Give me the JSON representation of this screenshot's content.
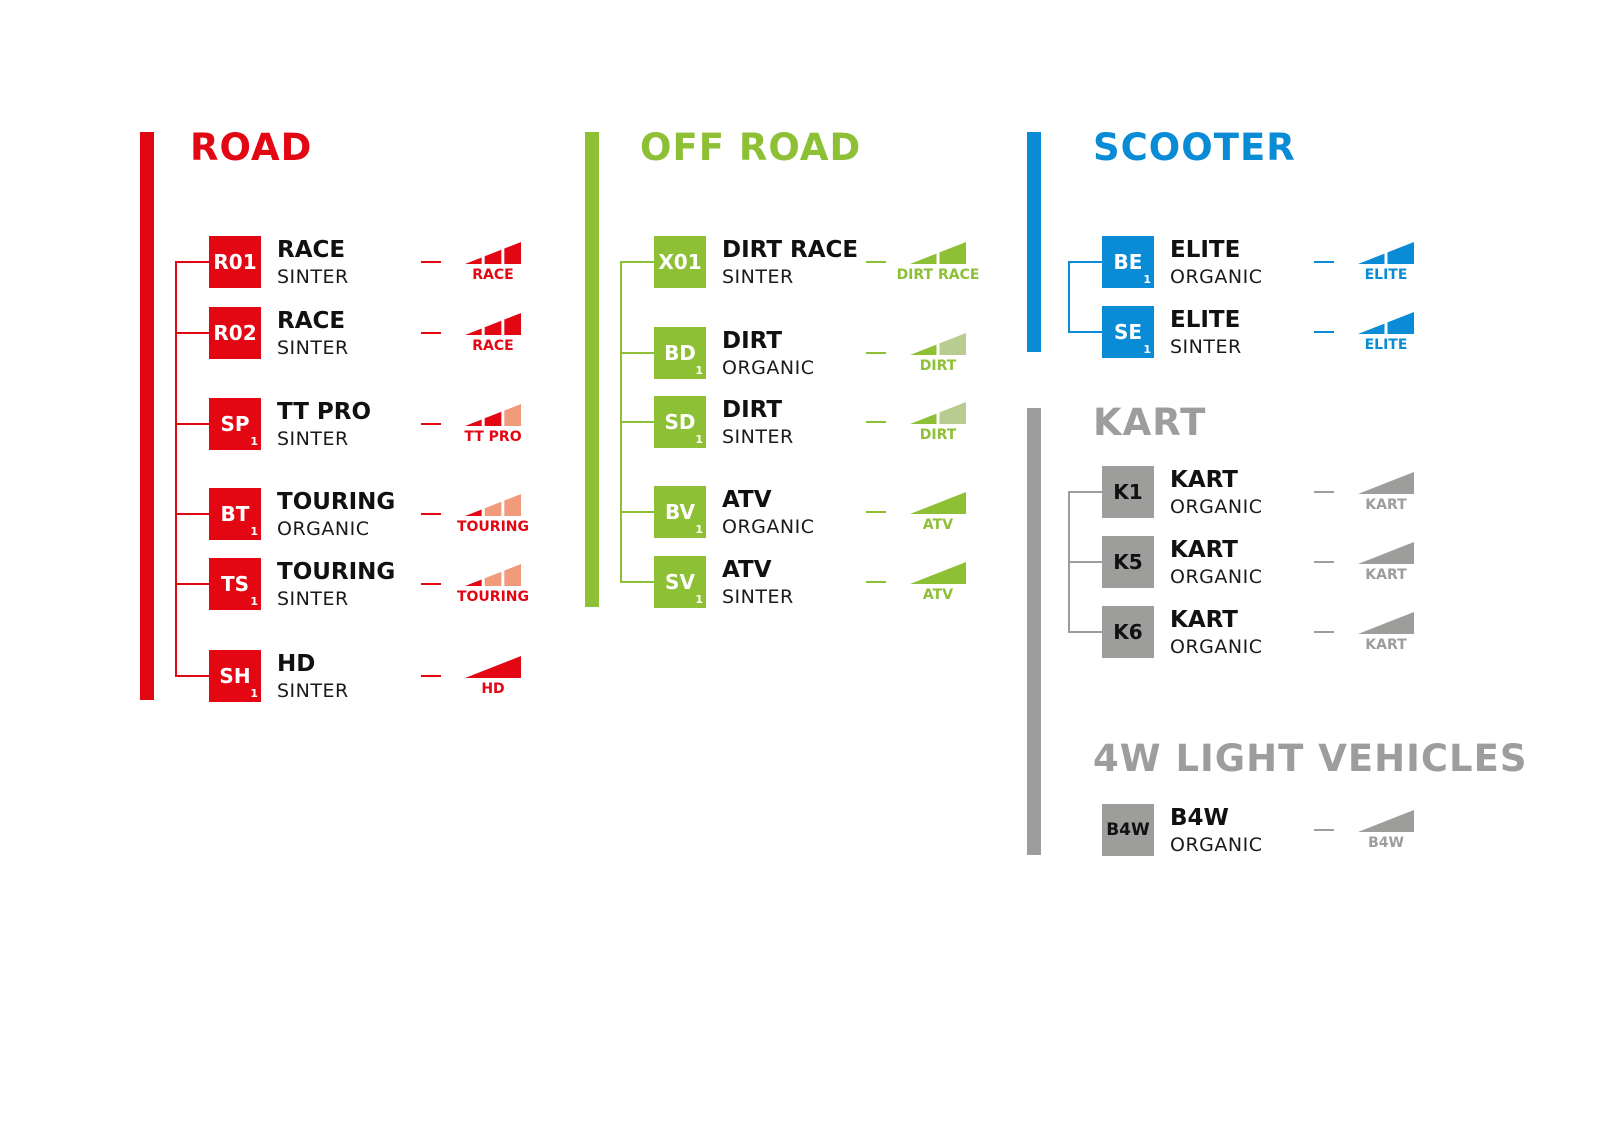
{
  "sections": [
    {
      "id": "road",
      "title": "ROAD",
      "color": "#e30613",
      "light": "#f19a7c",
      "items": [
        {
          "code": "R01",
          "sub": "",
          "name": "RACE",
          "material": "SINTER",
          "level": "RACE",
          "segments": [
            "#e30613",
            "#e30613",
            "#e30613"
          ]
        },
        {
          "code": "R02",
          "sub": "",
          "name": "RACE",
          "material": "SINTER",
          "level": "RACE",
          "segments": [
            "#e30613",
            "#e30613",
            "#e30613"
          ]
        },
        {
          "code": "SP",
          "sub": "1",
          "name": "TT PRO",
          "material": "SINTER",
          "level": "TT PRO",
          "segments": [
            "#e30613",
            "#e30613",
            "#f19a7c"
          ]
        },
        {
          "code": "BT",
          "sub": "1",
          "name": "TOURING",
          "material": "ORGANIC",
          "level": "TOURING",
          "segments": [
            "#e30613",
            "#f19a7c",
            "#f19a7c"
          ]
        },
        {
          "code": "TS",
          "sub": "1",
          "name": "TOURING",
          "material": "SINTER",
          "level": "TOURING",
          "segments": [
            "#e30613",
            "#f19a7c",
            "#f19a7c"
          ]
        },
        {
          "code": "SH",
          "sub": "1",
          "name": "HD",
          "material": "SINTER",
          "level": "HD",
          "segments": [
            "#e30613"
          ]
        }
      ]
    },
    {
      "id": "off-road",
      "title": "OFF ROAD",
      "color": "#8dc034",
      "light": "#b9cc8f",
      "items": [
        {
          "code": "X01",
          "sub": "",
          "name": "DIRT RACE",
          "material": "SINTER",
          "level": "DIRT RACE",
          "segments": [
            "#8dc034",
            "#8dc034"
          ]
        },
        {
          "code": "BD",
          "sub": "1",
          "name": "DIRT",
          "material": "ORGANIC",
          "level": "DIRT",
          "segments": [
            "#8dc034",
            "#b9cc8f"
          ]
        },
        {
          "code": "SD",
          "sub": "1",
          "name": "DIRT",
          "material": "SINTER",
          "level": "DIRT",
          "segments": [
            "#8dc034",
            "#b9cc8f"
          ]
        },
        {
          "code": "BV",
          "sub": "1",
          "name": "ATV",
          "material": "ORGANIC",
          "level": "ATV",
          "segments": [
            "#8dc034"
          ]
        },
        {
          "code": "SV",
          "sub": "1",
          "name": "ATV",
          "material": "SINTER",
          "level": "ATV",
          "segments": [
            "#8dc034"
          ]
        }
      ]
    },
    {
      "id": "scooter",
      "title": "SCOOTER",
      "color": "#0a8bd6",
      "items": [
        {
          "code": "BE",
          "sub": "1",
          "name": "ELITE",
          "material": "ORGANIC",
          "level": "ELITE",
          "segments": [
            "#0a8bd6",
            "#0a8bd6"
          ]
        },
        {
          "code": "SE",
          "sub": "1",
          "name": "ELITE",
          "material": "SINTER",
          "level": "ELITE",
          "segments": [
            "#0a8bd6",
            "#0a8bd6"
          ]
        }
      ]
    },
    {
      "id": "kart",
      "title": "KART",
      "color": "#9d9d9c",
      "items": [
        {
          "code": "K1",
          "sub": "",
          "name": "KART",
          "material": "ORGANIC",
          "level": "KART",
          "segments": [
            "#9d9d9c"
          ]
        },
        {
          "code": "K5",
          "sub": "",
          "name": "KART",
          "material": "ORGANIC",
          "level": "KART",
          "segments": [
            "#9d9d9c"
          ]
        },
        {
          "code": "K6",
          "sub": "",
          "name": "KART",
          "material": "ORGANIC",
          "level": "KART",
          "segments": [
            "#9d9d9c"
          ]
        }
      ]
    },
    {
      "id": "4w-light-vehicles",
      "title": "4W LIGHT VEHICLES",
      "color": "#9d9d9c",
      "items": [
        {
          "code": "B4W",
          "sub": "",
          "name": "B4W",
          "material": "ORGANIC",
          "level": "B4W",
          "segments": [
            "#9d9d9c"
          ]
        }
      ]
    }
  ]
}
